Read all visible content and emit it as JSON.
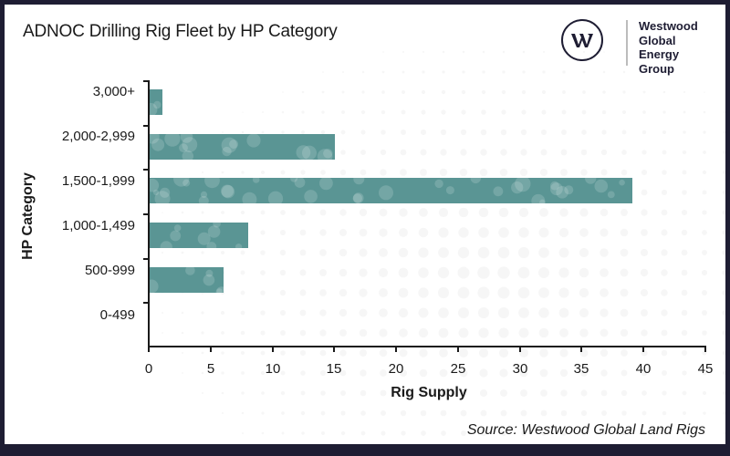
{
  "chart_data": {
    "type": "bar",
    "orientation": "horizontal",
    "title": "ADNOC Drilling Rig Fleet by HP Category",
    "xlabel": "Rig Supply",
    "ylabel": "HP Category",
    "categories": [
      "3,000+",
      "2,000-2,999",
      "1,500-1,999",
      "1,000-1,499",
      "500-999",
      "0-499"
    ],
    "values": [
      1,
      15,
      39,
      8,
      6,
      0
    ],
    "xlim": [
      0,
      45
    ],
    "xticks": [
      "0",
      "5",
      "10",
      "15",
      "20",
      "25",
      "30",
      "35",
      "40",
      "45"
    ],
    "grid": false,
    "legend": null,
    "bar_color": "#5a9594",
    "source": "Source: Westwood Global Land Rigs"
  },
  "header": {
    "title": "ADNOC Drilling Rig Fleet by HP Category"
  },
  "logo": {
    "icon": "westwood-w-logo-icon",
    "line1": "Westwood",
    "line2": "Global Energy",
    "line3": "Group"
  },
  "axes": {
    "xlabel": "Rig Supply",
    "ylabel": "HP Category",
    "xticks": [
      "0",
      "5",
      "10",
      "15",
      "20",
      "25",
      "30",
      "35",
      "40",
      "45"
    ],
    "categories": [
      "3,000+",
      "2,000-2,999",
      "1,500-1,999",
      "1,000-1,499",
      "500-999",
      "0-499"
    ]
  },
  "footer": {
    "source": "Source: Westwood Global Land Rigs"
  },
  "colors": {
    "frame": "#1e1d33",
    "bar": "#5a9594",
    "text": "#1a1a1a"
  }
}
